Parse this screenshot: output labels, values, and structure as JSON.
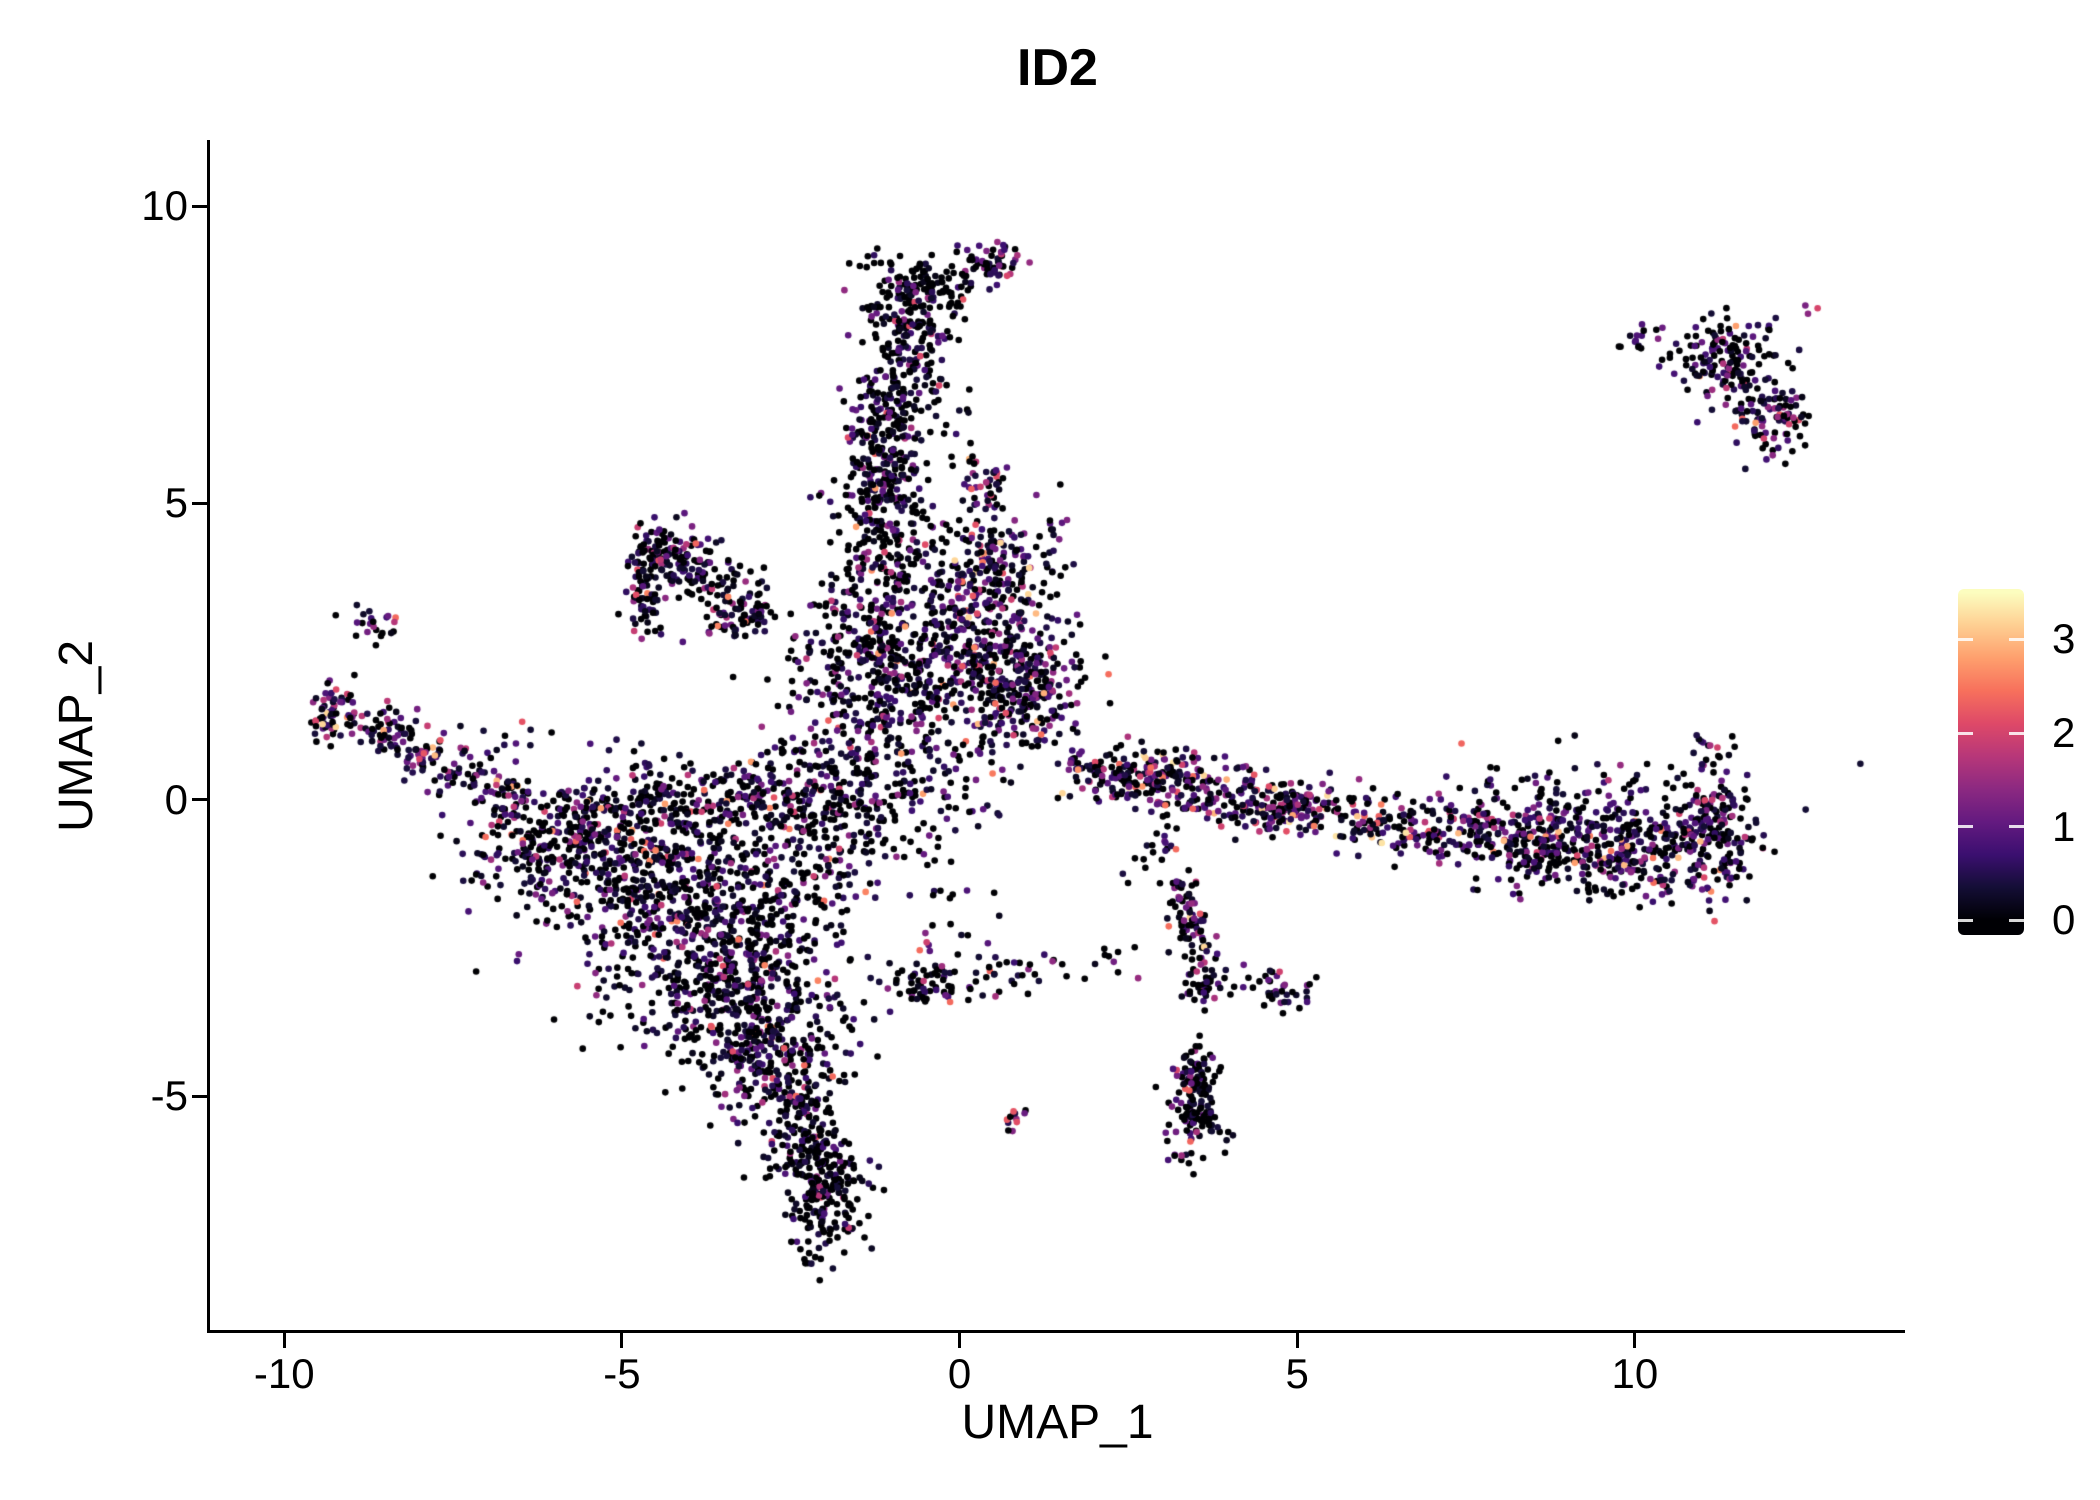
{
  "title": "ID2",
  "axes": {
    "x_label": "UMAP_1",
    "y_label": "UMAP_2",
    "x_ticks": [
      {
        "label": "-10",
        "value": -10
      },
      {
        "label": "-5",
        "value": -5
      },
      {
        "label": "0",
        "value": 0
      },
      {
        "label": "5",
        "value": 5
      },
      {
        "label": "10",
        "value": 10
      }
    ],
    "y_ticks": [
      {
        "label": "10",
        "value": 10
      },
      {
        "label": "5",
        "value": 5
      },
      {
        "label": "0",
        "value": 0
      },
      {
        "label": "-5",
        "value": -5
      }
    ]
  },
  "colorbar": {
    "ticks": [
      {
        "label": "3",
        "value": 3
      },
      {
        "label": "2",
        "value": 2
      },
      {
        "label": "1",
        "value": 1
      },
      {
        "label": "0",
        "value": 0
      }
    ]
  },
  "chart_data": {
    "type": "scatter",
    "title": "ID2",
    "xlabel": "UMAP_1",
    "ylabel": "UMAP_2",
    "xlim": [
      -11.1,
      14.0
    ],
    "ylim": [
      -8.94,
      11.12
    ],
    "grid": false,
    "legend_position": "right",
    "seed": 12345,
    "point_radius": 3.3,
    "color_scale": {
      "name": "magma",
      "domain": [
        0,
        3.5
      ],
      "stops": [
        [
          0.0,
          "#000004"
        ],
        [
          0.1,
          "#140e36"
        ],
        [
          0.2,
          "#3b0f70"
        ],
        [
          0.3,
          "#641a80"
        ],
        [
          0.4,
          "#8c2981"
        ],
        [
          0.5,
          "#b73779"
        ],
        [
          0.6,
          "#de4968"
        ],
        [
          0.7,
          "#f7705c"
        ],
        [
          0.8,
          "#fe9f6d"
        ],
        [
          0.9,
          "#fecf92"
        ],
        [
          1.0,
          "#fcfdbf"
        ]
      ]
    },
    "clusters": [
      {
        "kind": "blob",
        "center": [
          -4.8,
          -1.1
        ],
        "sd": [
          1.1,
          0.65
        ],
        "n": 380,
        "p_zero": 0.45,
        "expr_mean": 0.9,
        "expr_max": 2.6
      },
      {
        "kind": "blob",
        "center": [
          -4.0,
          -2.2
        ],
        "sd": [
          0.95,
          0.8
        ],
        "n": 480,
        "p_zero": 0.45,
        "expr_mean": 0.9,
        "expr_max": 2.6
      },
      {
        "kind": "blob",
        "center": [
          -3.2,
          -3.4
        ],
        "sd": [
          0.7,
          0.7
        ],
        "n": 340,
        "p_zero": 0.5,
        "expr_mean": 0.85,
        "expr_max": 2.6
      },
      {
        "kind": "blob",
        "center": [
          -2.7,
          -4.5
        ],
        "sd": [
          0.5,
          0.5
        ],
        "n": 200,
        "p_zero": 0.5,
        "expr_mean": 0.8,
        "expr_max": 2.4
      },
      {
        "kind": "segment",
        "from": [
          -5.9,
          -0.35
        ],
        "to": [
          -2.6,
          0.25
        ],
        "width": 0.3,
        "n": 240,
        "p_zero": 0.45,
        "expr_mean": 0.95,
        "expr_max": 2.8
      },
      {
        "kind": "blob",
        "center": [
          -6.3,
          -0.7
        ],
        "sd": [
          0.5,
          0.45
        ],
        "n": 130,
        "p_zero": 0.45,
        "expr_mean": 1.0,
        "expr_max": 2.8
      },
      {
        "kind": "segment",
        "from": [
          -2.4,
          -5.0
        ],
        "to": [
          -1.85,
          -6.6
        ],
        "width": 0.22,
        "n": 150,
        "p_zero": 0.6,
        "expr_mean": 0.7,
        "expr_max": 2.2
      },
      {
        "kind": "blob",
        "center": [
          -1.95,
          -6.9
        ],
        "sd": [
          0.3,
          0.45
        ],
        "n": 140,
        "p_zero": 0.6,
        "expr_mean": 0.65,
        "expr_max": 2.2
      },
      {
        "kind": "blob",
        "center": [
          -2.2,
          -0.9
        ],
        "sd": [
          0.5,
          0.9
        ],
        "n": 160,
        "p_zero": 0.45,
        "expr_mean": 0.9,
        "expr_max": 2.6
      },
      {
        "kind": "blob",
        "center": [
          -2.55,
          -5.9
        ],
        "sd": [
          0.25,
          0.3
        ],
        "n": 40,
        "p_zero": 0.55,
        "expr_mean": 0.75,
        "expr_max": 2.2
      },
      {
        "kind": "segment",
        "from": [
          -9.45,
          1.55
        ],
        "to": [
          -8.0,
          0.95
        ],
        "width": 0.2,
        "n": 95,
        "p_zero": 0.3,
        "expr_mean": 1.3,
        "expr_max": 3.2
      },
      {
        "kind": "segment",
        "from": [
          -8.0,
          0.95
        ],
        "to": [
          -6.5,
          -0.15
        ],
        "width": 0.24,
        "n": 115,
        "p_zero": 0.35,
        "expr_mean": 1.2,
        "expr_max": 3.0
      },
      {
        "kind": "blob",
        "center": [
          -8.7,
          2.95
        ],
        "sd": [
          0.2,
          0.2
        ],
        "n": 22,
        "p_zero": 0.4,
        "expr_mean": 1.0,
        "expr_max": 2.6
      },
      {
        "kind": "blob",
        "center": [
          -9.3,
          1.5
        ],
        "sd": [
          0.15,
          0.25
        ],
        "n": 30,
        "p_zero": 0.25,
        "expr_mean": 1.5,
        "expr_max": 3.2
      },
      {
        "kind": "blob",
        "center": [
          -4.42,
          4.32
        ],
        "sd": [
          0.18,
          0.18
        ],
        "n": 55,
        "p_zero": 0.35,
        "expr_mean": 1.1,
        "expr_max": 2.8
      },
      {
        "kind": "segment",
        "from": [
          -4.68,
          4.2
        ],
        "to": [
          -4.62,
          2.7
        ],
        "width": 0.13,
        "n": 75,
        "p_zero": 0.45,
        "expr_mean": 0.9,
        "expr_max": 2.6
      },
      {
        "kind": "segment",
        "from": [
          -4.35,
          4.25
        ],
        "to": [
          -3.0,
          3.05
        ],
        "width": 0.3,
        "n": 130,
        "p_zero": 0.45,
        "expr_mean": 0.9,
        "expr_max": 2.6
      },
      {
        "kind": "blob",
        "center": [
          -3.25,
          3.1
        ],
        "sd": [
          0.3,
          0.25
        ],
        "n": 55,
        "p_zero": 0.4,
        "expr_mean": 1.0,
        "expr_max": 2.6
      },
      {
        "kind": "blob",
        "center": [
          -1.1,
          0.9
        ],
        "sd": [
          0.85,
          0.8
        ],
        "n": 280,
        "p_zero": 0.45,
        "expr_mean": 0.95,
        "expr_max": 2.8
      },
      {
        "kind": "blob",
        "center": [
          -1.4,
          2.5
        ],
        "sd": [
          0.5,
          0.5
        ],
        "n": 170,
        "p_zero": 0.45,
        "expr_mean": 0.95,
        "expr_max": 2.8
      },
      {
        "kind": "blob",
        "center": [
          -0.55,
          1.95
        ],
        "sd": [
          0.45,
          0.35
        ],
        "n": 120,
        "p_zero": 0.45,
        "expr_mean": 0.95,
        "expr_max": 2.8
      },
      {
        "kind": "blob",
        "center": [
          -1.1,
          4.1
        ],
        "sd": [
          0.38,
          0.75
        ],
        "n": 210,
        "p_zero": 0.45,
        "expr_mean": 0.9,
        "expr_max": 2.8
      },
      {
        "kind": "blob",
        "center": [
          -1.15,
          5.3
        ],
        "sd": [
          0.33,
          0.3
        ],
        "n": 130,
        "p_zero": 0.4,
        "expr_mean": 1.0,
        "expr_max": 2.8
      },
      {
        "kind": "segment",
        "from": [
          -1.25,
          5.9
        ],
        "to": [
          -0.65,
          8.1
        ],
        "width": 0.3,
        "n": 240,
        "p_zero": 0.5,
        "expr_mean": 0.8,
        "expr_max": 2.6
      },
      {
        "kind": "blob",
        "center": [
          -0.62,
          8.55
        ],
        "sd": [
          0.42,
          0.33
        ],
        "n": 150,
        "p_zero": 0.6,
        "expr_mean": 0.6,
        "expr_max": 2.2
      },
      {
        "kind": "blob",
        "center": [
          0.55,
          9.05
        ],
        "sd": [
          0.22,
          0.18
        ],
        "n": 55,
        "p_zero": 0.35,
        "expr_mean": 1.1,
        "expr_max": 2.8
      },
      {
        "kind": "blob",
        "center": [
          0.38,
          5.35
        ],
        "sd": [
          0.16,
          0.2
        ],
        "n": 35,
        "p_zero": 0.3,
        "expr_mean": 1.4,
        "expr_max": 3.0
      },
      {
        "kind": "blob",
        "center": [
          -0.2,
          6.6
        ],
        "sd": [
          0.3,
          0.5
        ],
        "n": 30,
        "p_zero": 0.5,
        "expr_mean": 0.8,
        "expr_max": 2.4
      },
      {
        "kind": "blob",
        "center": [
          0.45,
          3.85
        ],
        "sd": [
          0.5,
          0.55
        ],
        "n": 230,
        "p_zero": 0.35,
        "expr_mean": 1.35,
        "expr_max": 3.2
      },
      {
        "kind": "blob",
        "center": [
          0.75,
          2.0
        ],
        "sd": [
          0.55,
          0.6
        ],
        "n": 270,
        "p_zero": 0.38,
        "expr_mean": 1.15,
        "expr_max": 3.0
      },
      {
        "kind": "blob",
        "center": [
          0.05,
          2.85
        ],
        "sd": [
          0.4,
          0.4
        ],
        "n": 100,
        "p_zero": 0.45,
        "expr_mean": 1.0,
        "expr_max": 2.8
      },
      {
        "kind": "blob",
        "center": [
          1.15,
          1.8
        ],
        "sd": [
          0.25,
          0.4
        ],
        "n": 70,
        "p_zero": 0.35,
        "expr_mean": 1.2,
        "expr_max": 3.0
      },
      {
        "kind": "blob",
        "center": [
          -1.3,
          -0.1
        ],
        "sd": [
          0.8,
          0.6
        ],
        "n": 90,
        "p_zero": 0.5,
        "expr_mean": 0.8,
        "expr_max": 2.4
      },
      {
        "kind": "segment",
        "from": [
          -0.9,
          -3.35
        ],
        "to": [
          1.4,
          -2.65
        ],
        "width": 0.18,
        "n": 55,
        "p_zero": 0.55,
        "expr_mean": 0.8,
        "expr_max": 2.4
      },
      {
        "kind": "blob",
        "center": [
          -0.55,
          -3.0
        ],
        "sd": [
          0.25,
          0.3
        ],
        "n": 35,
        "p_zero": 0.4,
        "expr_mean": 1.0,
        "expr_max": 2.6
      },
      {
        "kind": "blob",
        "center": [
          2.2,
          -2.75
        ],
        "sd": [
          0.35,
          0.15
        ],
        "n": 12,
        "p_zero": 0.6,
        "expr_mean": 0.6,
        "expr_max": 2.0
      },
      {
        "kind": "blob",
        "center": [
          0.78,
          -5.35
        ],
        "sd": [
          0.12,
          0.12
        ],
        "n": 12,
        "p_zero": 0.3,
        "expr_mean": 1.8,
        "expr_max": 3.4
      },
      {
        "kind": "segment",
        "from": [
          1.6,
          0.6
        ],
        "to": [
          4.2,
          0.05
        ],
        "width": 0.26,
        "n": 210,
        "p_zero": 0.38,
        "expr_mean": 1.15,
        "expr_max": 3.2
      },
      {
        "kind": "segment",
        "from": [
          4.2,
          0.05
        ],
        "to": [
          7.0,
          -0.5
        ],
        "width": 0.26,
        "n": 210,
        "p_zero": 0.35,
        "expr_mean": 1.25,
        "expr_max": 3.3
      },
      {
        "kind": "segment",
        "from": [
          7.0,
          -0.5
        ],
        "to": [
          8.9,
          -0.72
        ],
        "width": 0.3,
        "n": 190,
        "p_zero": 0.4,
        "expr_mean": 1.1,
        "expr_max": 3.0
      },
      {
        "kind": "blob",
        "center": [
          9.8,
          -0.8
        ],
        "sd": [
          0.95,
          0.42
        ],
        "n": 430,
        "p_zero": 0.4,
        "expr_mean": 1.1,
        "expr_max": 3.0
      },
      {
        "kind": "blob",
        "center": [
          11.25,
          -0.55
        ],
        "sd": [
          0.22,
          0.5
        ],
        "n": 120,
        "p_zero": 0.38,
        "expr_mean": 1.15,
        "expr_max": 3.0
      },
      {
        "kind": "blob",
        "center": [
          9.0,
          0.15
        ],
        "sd": [
          1.3,
          0.35
        ],
        "n": 70,
        "p_zero": 0.55,
        "expr_mean": 0.8,
        "expr_max": 2.4
      },
      {
        "kind": "blob",
        "center": [
          11.15,
          0.75
        ],
        "sd": [
          0.15,
          0.3
        ],
        "n": 14,
        "p_zero": 0.4,
        "expr_mean": 1.0,
        "expr_max": 2.6
      },
      {
        "kind": "blob",
        "center": [
          2.9,
          0.33
        ],
        "sd": [
          0.35,
          0.22
        ],
        "n": 70,
        "p_zero": 0.3,
        "expr_mean": 1.5,
        "expr_max": 3.3
      },
      {
        "kind": "blob",
        "center": [
          4.75,
          -0.18
        ],
        "sd": [
          0.3,
          0.2
        ],
        "n": 70,
        "p_zero": 0.3,
        "expr_mean": 1.5,
        "expr_max": 3.3
      },
      {
        "kind": "segment",
        "from": [
          3.25,
          -1.35
        ],
        "to": [
          3.65,
          -2.95
        ],
        "width": 0.15,
        "n": 85,
        "p_zero": 0.35,
        "expr_mean": 1.3,
        "expr_max": 3.2
      },
      {
        "kind": "blob",
        "center": [
          3.62,
          -3.15
        ],
        "sd": [
          0.18,
          0.18
        ],
        "n": 40,
        "p_zero": 0.4,
        "expr_mean": 1.1,
        "expr_max": 2.8
      },
      {
        "kind": "blob",
        "center": [
          4.95,
          -3.25
        ],
        "sd": [
          0.2,
          0.14
        ],
        "n": 25,
        "p_zero": 0.45,
        "expr_mean": 1.0,
        "expr_max": 2.6
      },
      {
        "kind": "blob",
        "center": [
          4.35,
          -3.05
        ],
        "sd": [
          0.15,
          0.12
        ],
        "n": 12,
        "p_zero": 0.5,
        "expr_mean": 0.9,
        "expr_max": 2.4
      },
      {
        "kind": "blob",
        "center": [
          2.95,
          -0.95
        ],
        "sd": [
          0.2,
          0.25
        ],
        "n": 20,
        "p_zero": 0.5,
        "expr_mean": 0.9,
        "expr_max": 2.4
      },
      {
        "kind": "blob",
        "center": [
          3.5,
          -4.6
        ],
        "sd": [
          0.15,
          0.25
        ],
        "n": 45,
        "p_zero": 0.5,
        "expr_mean": 0.9,
        "expr_max": 2.6
      },
      {
        "kind": "blob",
        "center": [
          3.52,
          -5.25
        ],
        "sd": [
          0.2,
          0.4
        ],
        "n": 110,
        "p_zero": 0.5,
        "expr_mean": 0.9,
        "expr_max": 2.6
      },
      {
        "kind": "blob",
        "center": [
          11.35,
          7.6
        ],
        "sd": [
          0.5,
          0.3
        ],
        "n": 85,
        "p_zero": 0.45,
        "expr_mean": 1.0,
        "expr_max": 2.8
      },
      {
        "kind": "segment",
        "from": [
          11.0,
          7.55
        ],
        "to": [
          12.05,
          6.35
        ],
        "width": 0.25,
        "n": 95,
        "p_zero": 0.4,
        "expr_mean": 1.1,
        "expr_max": 2.8
      },
      {
        "kind": "blob",
        "center": [
          12.15,
          6.45
        ],
        "sd": [
          0.25,
          0.3
        ],
        "n": 55,
        "p_zero": 0.4,
        "expr_mean": 1.1,
        "expr_max": 2.8
      },
      {
        "kind": "blob",
        "center": [
          10.15,
          7.7
        ],
        "sd": [
          0.18,
          0.15
        ],
        "n": 16,
        "p_zero": 0.5,
        "expr_mean": 0.9,
        "expr_max": 2.4
      },
      {
        "kind": "blob",
        "center": [
          12.62,
          8.3
        ],
        "sd": [
          0.08,
          0.08
        ],
        "n": 3,
        "p_zero": 0.2,
        "expr_mean": 1.8,
        "expr_max": 2.6
      },
      {
        "kind": "blob",
        "center": [
          11.8,
          5.8
        ],
        "sd": [
          0.15,
          0.2
        ],
        "n": 8,
        "p_zero": 0.45,
        "expr_mean": 1.0,
        "expr_max": 2.4
      },
      {
        "kind": "blob",
        "center": [
          -6.6,
          1.05
        ],
        "sd": [
          0.3,
          0.2
        ],
        "n": 8,
        "p_zero": 0.5,
        "expr_mean": 0.9,
        "expr_max": 2.2
      },
      {
        "kind": "blob",
        "center": [
          -5.3,
          0.6
        ],
        "sd": [
          0.5,
          0.3
        ],
        "n": 12,
        "p_zero": 0.5,
        "expr_mean": 0.9,
        "expr_max": 2.2
      },
      {
        "kind": "blob",
        "center": [
          -2.3,
          -0.2
        ],
        "sd": [
          0.4,
          0.4
        ],
        "n": 40,
        "p_zero": 0.45,
        "expr_mean": 0.9,
        "expr_max": 2.6
      },
      {
        "kind": "blob",
        "center": [
          1.45,
          4.55
        ],
        "sd": [
          0.15,
          0.2
        ],
        "n": 8,
        "p_zero": 0.4,
        "expr_mean": 1.1,
        "expr_max": 2.6
      },
      {
        "kind": "blob",
        "center": [
          -0.1,
          -1.8
        ],
        "sd": [
          0.5,
          0.6
        ],
        "n": 18,
        "p_zero": 0.55,
        "expr_mean": 0.7,
        "expr_max": 2.2
      }
    ]
  }
}
